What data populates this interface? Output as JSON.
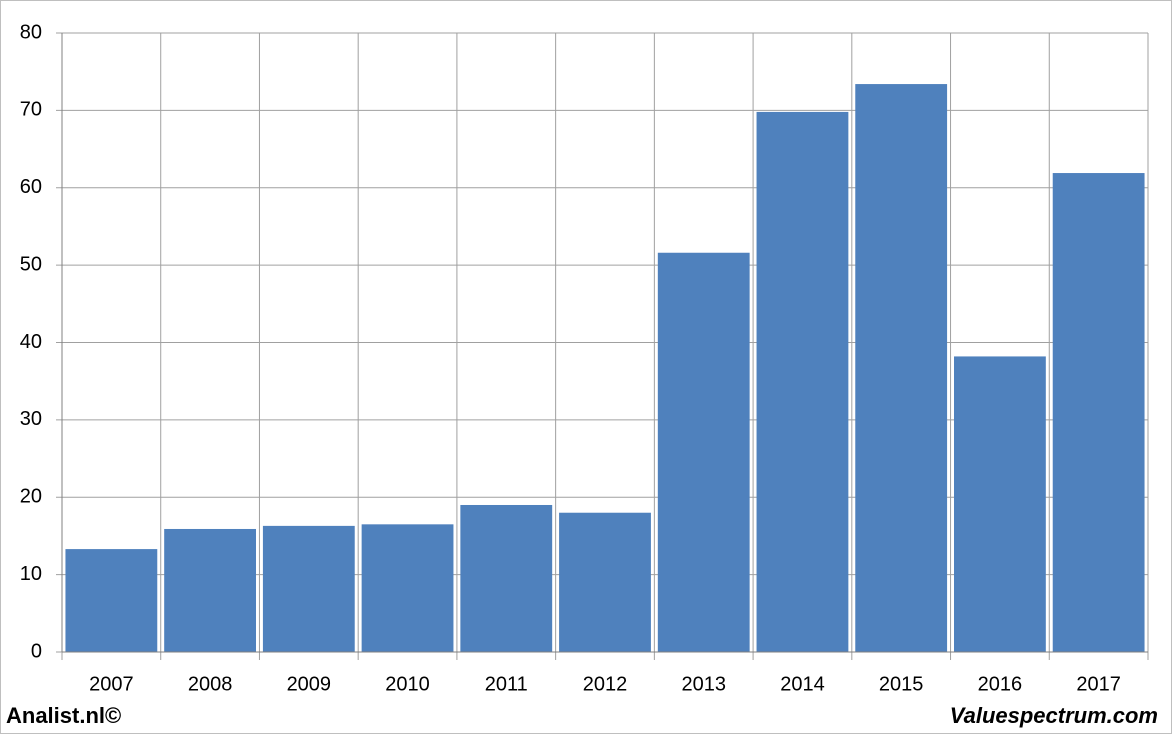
{
  "chart_data": {
    "type": "bar",
    "categories": [
      "2007",
      "2008",
      "2009",
      "2010",
      "2011",
      "2012",
      "2013",
      "2014",
      "2015",
      "2016",
      "2017"
    ],
    "values": [
      13.3,
      15.9,
      16.3,
      16.5,
      19.0,
      18.0,
      51.6,
      69.8,
      73.4,
      38.2,
      61.9
    ],
    "color": "#4f81bd",
    "ylim": [
      0,
      80
    ],
    "yticks": [
      0,
      10,
      20,
      30,
      40,
      50,
      60,
      70,
      80
    ],
    "grid": true
  },
  "footer": {
    "left": "Analist.nl©",
    "right": "Valuespectrum.com"
  }
}
